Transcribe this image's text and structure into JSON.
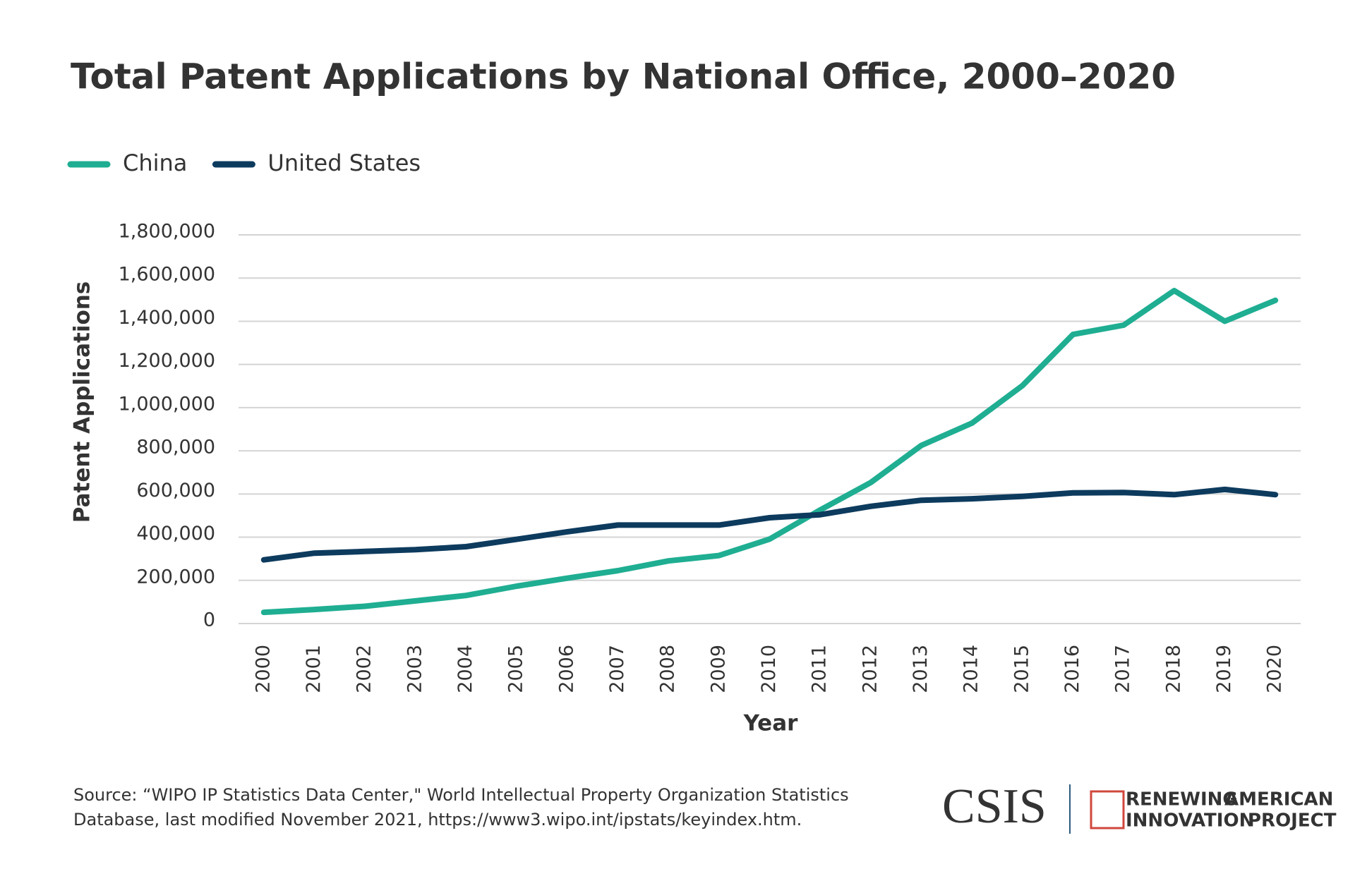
{
  "chart_data": {
    "type": "line",
    "title": "Total Patent Applications by National Office, 2000–2020",
    "x_label": "Year",
    "y_label": "Patent Applications",
    "categories": [
      "2000",
      "2001",
      "2002",
      "2003",
      "2004",
      "2005",
      "2006",
      "2007",
      "2008",
      "2009",
      "2010",
      "2011",
      "2012",
      "2013",
      "2014",
      "2015",
      "2016",
      "2017",
      "2018",
      "2019",
      "2020"
    ],
    "series": [
      {
        "name": "China",
        "color": "#1fae92",
        "values": [
          52000,
          65000,
          80000,
          105000,
          130000,
          173000,
          210000,
          245000,
          290000,
          315000,
          391000,
          526000,
          653000,
          825000,
          928000,
          1102000,
          1339000,
          1382000,
          1542000,
          1400000,
          1497000
        ]
      },
      {
        "name": "United States",
        "color": "#0d3b5e",
        "values": [
          295000,
          326000,
          334000,
          342000,
          356000,
          390000,
          425000,
          456000,
          456000,
          456000,
          490000,
          504000,
          543000,
          571000,
          578000,
          589000,
          605000,
          607000,
          597000,
          621000,
          597000
        ]
      }
    ],
    "ylim": [
      0,
      1800000
    ],
    "yticks": [
      0,
      {
        "value": 200000,
        "label": "200,000"
      },
      {
        "value": 400000,
        "label": "400,000"
      },
      {
        "value": 600000,
        "label": "600,000"
      },
      {
        "value": 800000,
        "label": "800,000"
      },
      {
        "value": 1000000,
        "label": "1,000,000"
      },
      {
        "value": 1200000,
        "label": "1,200,000"
      },
      {
        "value": 1400000,
        "label": "1,400,000"
      },
      {
        "value": 1600000,
        "label": "1,600,000"
      },
      {
        "value": 1800000,
        "label": "1,800,000"
      }
    ],
    "grid": true,
    "legend": "top-left",
    "source": [
      "Source: “WIPO IP Statistics Data Center,\" World Intellectual Property Organization Statistics",
      "Database, last modified November 2021, https://www3.wipo.int/ipstats/keyindex.htm."
    ],
    "logos": {
      "csis": "CSIS",
      "project_a": "RENEWING",
      "project_b": "AMERICAN",
      "project_c": "INNOVATION",
      "project_d": "PROJECT"
    }
  }
}
